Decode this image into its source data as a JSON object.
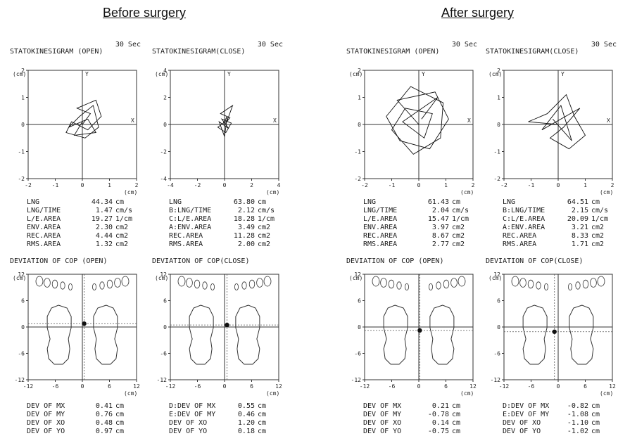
{
  "headings": {
    "before": "Before surgery",
    "after": "After surgery"
  },
  "chart_data": [
    {
      "type": "line",
      "group": "Before surgery",
      "duration": "30 Sec",
      "title": "STATOKINESIGRAM (OPEN)",
      "xlim": [
        -2,
        2
      ],
      "ylim": [
        -2,
        2
      ],
      "xticks": [
        "-2",
        "-1",
        "0",
        "1",
        "2"
      ],
      "yticks": [
        "2",
        "1",
        "0",
        "-1",
        "-2"
      ],
      "unit": "(cm)",
      "x_axis_label": "X",
      "y_axis_label": "Y",
      "trace": [
        [
          0.0,
          0.0
        ],
        [
          0.3,
          0.4
        ],
        [
          -0.2,
          0.6
        ],
        [
          0.5,
          0.9
        ],
        [
          0.7,
          0.3
        ],
        [
          0.2,
          -0.2
        ],
        [
          -0.4,
          0.1
        ],
        [
          -0.6,
          -0.3
        ],
        [
          0.1,
          -0.5
        ],
        [
          0.6,
          -0.1
        ],
        [
          0.4,
          0.7
        ],
        [
          -0.1,
          0.3
        ],
        [
          -0.5,
          -0.1
        ],
        [
          0.2,
          0.2
        ],
        [
          0.5,
          -0.3
        ],
        [
          -0.3,
          -0.4
        ],
        [
          0.0,
          0.1
        ]
      ],
      "stats": [
        {
          "label": "LNG",
          "value": "44.34",
          "unit": "cm"
        },
        {
          "label": "LNG/TIME",
          "value": "1.47",
          "unit": "cm/s"
        },
        {
          "label": "L/E.AREA",
          "value": "19.27",
          "unit": "1/cm"
        },
        {
          "label": "ENV.AREA",
          "value": "2.30",
          "unit": "cm2"
        },
        {
          "label": "REC.AREA",
          "value": "4.44",
          "unit": "cm2"
        },
        {
          "label": "RMS.AREA",
          "value": "1.32",
          "unit": "cm2"
        }
      ],
      "cop": {
        "title": "DEVIATION OF COP (OPEN)",
        "xlim": [
          -12,
          12
        ],
        "ylim": [
          -12,
          12
        ],
        "xticks": [
          "-12",
          "-6",
          "0",
          "6",
          "12"
        ],
        "yticks": [
          "12",
          "6",
          "0",
          "-6",
          "-12"
        ],
        "unit": "(cm)",
        "center": [
          0.41,
          0.76
        ],
        "stats": [
          {
            "label": "DEV OF MX",
            "value": "0.41",
            "unit": "cm"
          },
          {
            "label": "DEV OF MY",
            "value": "0.76",
            "unit": "cm"
          },
          {
            "label": "DEV OF XO",
            "value": "0.48",
            "unit": "cm"
          },
          {
            "label": "DEV OF YO",
            "value": "0.97",
            "unit": "cm"
          }
        ]
      }
    },
    {
      "type": "line",
      "group": "Before surgery",
      "duration": "30 Sec",
      "title": "STATOKINESIGRAM(CLOSE)",
      "xlim": [
        -4,
        4
      ],
      "ylim": [
        -4,
        4
      ],
      "xticks": [
        "-4",
        "-2",
        "0",
        "2",
        "4"
      ],
      "yticks": [
        "4",
        "2",
        "0",
        "-2",
        "-4"
      ],
      "unit": "(cm)",
      "x_axis_label": "X",
      "y_axis_label": "Y",
      "trace": [
        [
          0.0,
          0.0
        ],
        [
          0.4,
          0.5
        ],
        [
          -0.3,
          0.8
        ],
        [
          0.6,
          1.4
        ],
        [
          0.2,
          0.3
        ],
        [
          -0.5,
          -0.2
        ],
        [
          0.1,
          -0.6
        ],
        [
          0.5,
          0.1
        ],
        [
          -0.2,
          0.4
        ],
        [
          0.3,
          -0.3
        ],
        [
          -0.4,
          0.2
        ],
        [
          0.0,
          -0.9
        ],
        [
          0.2,
          0.6
        ],
        [
          -0.1,
          0.1
        ]
      ],
      "stats": [
        {
          "label": "LNG",
          "value": "63.80",
          "unit": "cm"
        },
        {
          "label": "B:LNG/TIME",
          "value": "2.12",
          "unit": "cm/s"
        },
        {
          "label": "C:L/E.AREA",
          "value": "18.28",
          "unit": "1/cm"
        },
        {
          "label": "A:ENV.AREA",
          "value": "3.49",
          "unit": "cm2"
        },
        {
          "label": "REC.AREA",
          "value": "11.28",
          "unit": "cm2"
        },
        {
          "label": "RMS.AREA",
          "value": "2.00",
          "unit": "cm2"
        }
      ],
      "cop": {
        "title": "DEVIATION OF COP(CLOSE)",
        "xlim": [
          -12,
          12
        ],
        "ylim": [
          -12,
          12
        ],
        "xticks": [
          "-12",
          "-6",
          "0",
          "6",
          "12"
        ],
        "yticks": [
          "12",
          "6",
          "0",
          "-6",
          "-12"
        ],
        "unit": "(cm)",
        "center": [
          0.55,
          0.46
        ],
        "stats": [
          {
            "label": "D:DEV OF MX",
            "value": "0.55",
            "unit": "cm"
          },
          {
            "label": "E:DEV OF MY",
            "value": "0.46",
            "unit": "cm"
          },
          {
            "label": "DEV OF XO",
            "value": "1.20",
            "unit": "cm"
          },
          {
            "label": "DEV OF YO",
            "value": "0.18",
            "unit": "cm"
          }
        ]
      }
    },
    {
      "type": "line",
      "group": "After surgery",
      "duration": "30 Sec",
      "title": "STATOKINESIGRAM (OPEN)",
      "xlim": [
        -2,
        2
      ],
      "ylim": [
        -2,
        2
      ],
      "xticks": [
        "-2",
        "-1",
        "0",
        "1",
        "2"
      ],
      "yticks": [
        "2",
        "1",
        "0",
        "-1",
        "-2"
      ],
      "unit": "(cm)",
      "x_axis_label": "X",
      "y_axis_label": "Y",
      "trace": [
        [
          0.0,
          0.0
        ],
        [
          -0.8,
          0.9
        ],
        [
          0.6,
          1.2
        ],
        [
          1.1,
          0.2
        ],
        [
          0.4,
          -0.9
        ],
        [
          -0.7,
          -0.6
        ],
        [
          -1.2,
          0.3
        ],
        [
          -0.3,
          1.4
        ],
        [
          0.9,
          0.8
        ],
        [
          0.8,
          -0.5
        ],
        [
          -0.2,
          -1.1
        ],
        [
          -1.0,
          -0.2
        ],
        [
          -0.5,
          0.6
        ],
        [
          0.5,
          0.4
        ],
        [
          0.2,
          -0.5
        ],
        [
          -0.6,
          0.1
        ],
        [
          0.7,
          1.0
        ],
        [
          0.1,
          0.2
        ]
      ],
      "stats": [
        {
          "label": "LNG",
          "value": "61.43",
          "unit": "cm"
        },
        {
          "label": "LNG/TIME",
          "value": "2.04",
          "unit": "cm/s"
        },
        {
          "label": "L/E.AREA",
          "value": "15.47",
          "unit": "1/cm"
        },
        {
          "label": "ENV.AREA",
          "value": "3.97",
          "unit": "cm2"
        },
        {
          "label": "REC.AREA",
          "value": "8.67",
          "unit": "cm2"
        },
        {
          "label": "RMS.AREA",
          "value": "2.77",
          "unit": "cm2"
        }
      ],
      "cop": {
        "title": "DEVIATION OF COP (OPEN)",
        "xlim": [
          -12,
          12
        ],
        "ylim": [
          -12,
          12
        ],
        "xticks": [
          "-12",
          "-6",
          "0",
          "6",
          "12"
        ],
        "yticks": [
          "12",
          "6",
          "0",
          "-6",
          "-12"
        ],
        "unit": "(cm)",
        "center": [
          0.21,
          -0.78
        ],
        "stats": [
          {
            "label": "DEV OF MX",
            "value": "0.21",
            "unit": "cm"
          },
          {
            "label": "DEV OF MY",
            "value": "-0.78",
            "unit": "cm"
          },
          {
            "label": "DEV OF XO",
            "value": "0.14",
            "unit": "cm"
          },
          {
            "label": "DEV OF YO",
            "value": "-0.75",
            "unit": "cm"
          }
        ]
      }
    },
    {
      "type": "line",
      "group": "After surgery",
      "duration": "30 Sec",
      "title": "STATOKINESIGRAM(CLOSE)",
      "xlim": [
        -2,
        2
      ],
      "ylim": [
        -2,
        2
      ],
      "xticks": [
        "-2",
        "-1",
        "0",
        "1",
        "2"
      ],
      "yticks": [
        "2",
        "1",
        "0",
        "-1",
        "-2"
      ],
      "unit": "(cm)",
      "x_axis_label": "X",
      "y_axis_label": "Y",
      "trace": [
        [
          0.0,
          0.0
        ],
        [
          -1.1,
          0.1
        ],
        [
          -0.4,
          0.4
        ],
        [
          0.3,
          1.1
        ],
        [
          0.6,
          0.3
        ],
        [
          1.0,
          -0.4
        ],
        [
          0.4,
          -0.9
        ],
        [
          -0.3,
          -0.5
        ],
        [
          0.2,
          -0.1
        ],
        [
          0.8,
          0.6
        ],
        [
          -0.6,
          -0.2
        ],
        [
          0.1,
          0.7
        ],
        [
          0.5,
          -0.6
        ],
        [
          -0.2,
          0.2
        ]
      ],
      "stats": [
        {
          "label": "LNG",
          "value": "64.51",
          "unit": "cm"
        },
        {
          "label": "B:LNG/TIME",
          "value": "2.15",
          "unit": "cm/s"
        },
        {
          "label": "C:L/E.AREA",
          "value": "20.09",
          "unit": "1/cm"
        },
        {
          "label": "A:ENV.AREA",
          "value": "3.21",
          "unit": "cm2"
        },
        {
          "label": "REC.AREA",
          "value": "8.33",
          "unit": "cm2"
        },
        {
          "label": "RMS.AREA",
          "value": "1.71",
          "unit": "cm2"
        }
      ],
      "cop": {
        "title": "DEVIATION OF COP(CLOSE)",
        "xlim": [
          -12,
          12
        ],
        "ylim": [
          -12,
          12
        ],
        "xticks": [
          "-12",
          "-6",
          "0",
          "6",
          "12"
        ],
        "yticks": [
          "12",
          "6",
          "0",
          "-6",
          "-12"
        ],
        "unit": "(cm)",
        "center": [
          -0.82,
          -1.08
        ],
        "stats": [
          {
            "label": "D:DEV OF MX",
            "value": "-0.82",
            "unit": "cm"
          },
          {
            "label": "E:DEV OF MY",
            "value": "-1.08",
            "unit": "cm"
          },
          {
            "label": "DEV OF XO",
            "value": "-1.10",
            "unit": "cm"
          },
          {
            "label": "DEV OF YO",
            "value": "-1.02",
            "unit": "cm"
          }
        ]
      }
    }
  ]
}
